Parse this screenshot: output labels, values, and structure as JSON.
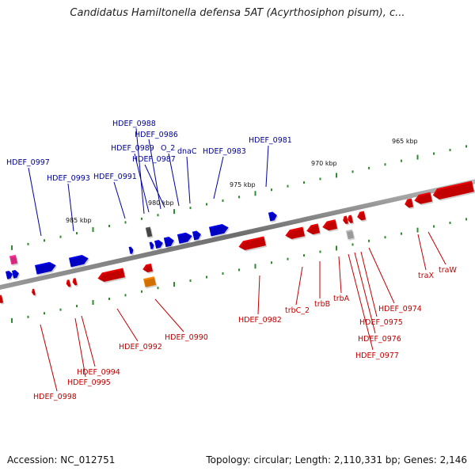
{
  "title": "Candidatus Hamiltonella defensa 5AT (Acyrthosiphon pisum), c...",
  "footer": {
    "accession": "Accession: NC_012751",
    "summary": "Topology: circular; Length: 2,110,331 bp; Genes: 2,146"
  },
  "scale_labels": [
    "985 kbp",
    "980 kbp",
    "975 kbp",
    "970 kbp",
    "965 kbp"
  ],
  "top_labels": [
    "HDEF_0997",
    "HDEF_0993",
    "HDEF_0991",
    "HDEF_0988",
    "HDEF_0989",
    "HDEF_0986",
    "HDEF_0987",
    "O_2",
    "dnaC",
    "HDEF_0983",
    "HDEF_0981"
  ],
  "bottom_labels": [
    "HDEF_0998",
    "HDEF_0995",
    "HDEF_0994",
    "HDEF_0992",
    "HDEF_0990",
    "HDEF_0982",
    "trbC_2",
    "trbB",
    "trbA",
    "HDEF_0977",
    "HDEF_0976",
    "HDEF_0975",
    "HDEF_0974",
    "traX",
    "traW"
  ],
  "colors": {
    "forward": "#0000ee",
    "reverse": "#ee0000",
    "rna": "#ff3399",
    "other": "#ff8800",
    "pseudo": "#888888",
    "top_text": "#00009c",
    "bottom_text": "#c00000"
  }
}
